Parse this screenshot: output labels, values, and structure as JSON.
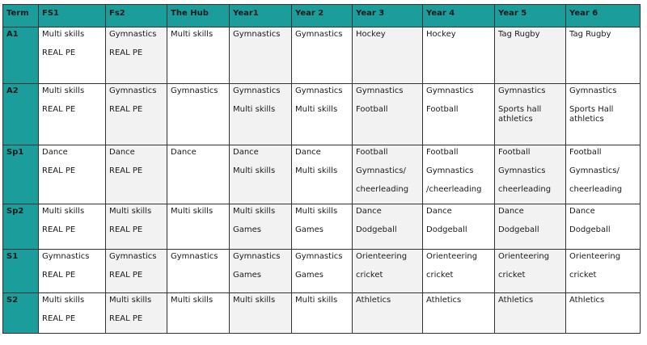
{
  "table": {
    "headers": [
      "Term",
      "FS1",
      "Fs2",
      "The Hub",
      "Year1",
      "Year 2",
      "Year 3",
      "Year 4",
      "Year 5",
      "Year 6"
    ],
    "rows": [
      {
        "term": "A1",
        "cells": [
          [
            "Multi skills",
            "REAL PE"
          ],
          [
            "Gymnastics",
            "REAL PE"
          ],
          [
            "Multi skills"
          ],
          [
            "Gymnastics"
          ],
          [
            "Gymnastics"
          ],
          [
            "Hockey"
          ],
          [
            "Hockey"
          ],
          [
            "Tag Rugby"
          ],
          [
            "Tag Rugby"
          ]
        ]
      },
      {
        "term": "A2",
        "cells": [
          [
            "Multi skills",
            "REAL PE"
          ],
          [
            "Gymnastics",
            "REAL PE"
          ],
          [
            "Gymnastics"
          ],
          [
            "Gymnastics",
            "Multi skills"
          ],
          [
            "Gymnastics",
            "Multi skills"
          ],
          [
            "Gymnastics",
            "Football"
          ],
          [
            "Gymnastics",
            "Football"
          ],
          [
            "Gymnastics",
            "Sports hall",
            "athletics"
          ],
          [
            "Gymnastics",
            "Sports Hall",
            "athletics"
          ]
        ]
      },
      {
        "term": "Sp1",
        "cells": [
          [
            "Dance",
            "REAL PE"
          ],
          [
            "Dance",
            "REAL PE"
          ],
          [
            "Dance"
          ],
          [
            "Dance",
            "Multi skills"
          ],
          [
            "Dance",
            "Multi skills"
          ],
          [
            "Football",
            "Gymnastics/",
            "cheerleading"
          ],
          [
            "Football",
            "Gymnastics",
            "/cheerleading"
          ],
          [
            "Football",
            "Gymnastics",
            "cheerleading"
          ],
          [
            "Football",
            "Gymnastics/",
            "cheerleading"
          ]
        ]
      },
      {
        "term": "Sp2",
        "cells": [
          [
            "Multi skills",
            "REAL PE"
          ],
          [
            "Multi skills",
            "REAL PE"
          ],
          [
            "Multi skills"
          ],
          [
            "Multi skills",
            "Games"
          ],
          [
            "Multi skills",
            "Games"
          ],
          [
            "Dance",
            "Dodgeball"
          ],
          [
            "Dance",
            "Dodgeball"
          ],
          [
            "Dance",
            "Dodgeball"
          ],
          [
            "Dance",
            "Dodgeball"
          ]
        ]
      },
      {
        "term": "S1",
        "cells": [
          [
            "Gymnastics",
            "REAL PE"
          ],
          [
            "Gymnastics",
            "REAL PE"
          ],
          [
            "Gymnastics"
          ],
          [
            "Gymnastics",
            "Games"
          ],
          [
            "Gymnastics",
            "Games"
          ],
          [
            "Orienteering",
            "cricket"
          ],
          [
            "Orienteering",
            "cricket"
          ],
          [
            "Orienteering",
            "cricket"
          ],
          [
            "Orienteering",
            "cricket"
          ]
        ]
      },
      {
        "term": "S2",
        "cells": [
          [
            "Multi skills",
            "REAL PE"
          ],
          [
            "Multi skills",
            "REAL PE"
          ],
          [
            "Multi skills"
          ],
          [
            "Multi skills"
          ],
          [
            "Multi skills"
          ],
          [
            "Athletics"
          ],
          [
            "Athletics"
          ],
          [
            "Athletics"
          ],
          [
            "Athletics"
          ]
        ]
      }
    ]
  },
  "colors": {
    "header_bg": "#1b9e9b",
    "shade_bg": "#f2f2f2",
    "border": "#333333"
  }
}
